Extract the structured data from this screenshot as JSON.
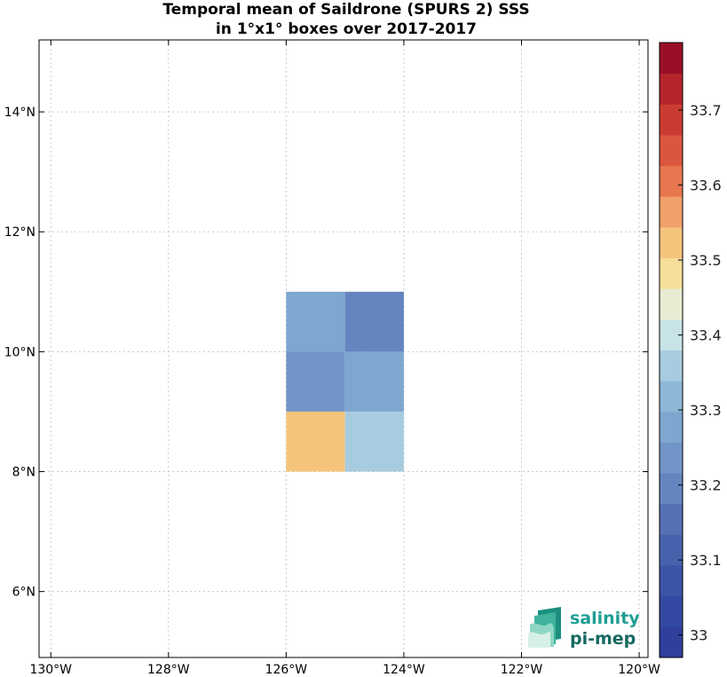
{
  "title": {
    "line1": "Temporal mean of Saildrone (SPURS 2) SSS",
    "line2": "in 1°x1° boxes over 2017-2017"
  },
  "logo": {
    "word1": "salinity",
    "word2": "pi-mep"
  },
  "chart_data": {
    "type": "heatmap",
    "title": "Temporal mean of Saildrone (SPURS 2) SSS in 1°x1° boxes over 2017-2017",
    "xlabel": "",
    "ylabel": "",
    "xlim": [
      -130.2,
      -119.85
    ],
    "ylim": [
      4.9,
      15.2
    ],
    "grid": true,
    "x_ticks": [
      {
        "value": -130,
        "label": "130°W"
      },
      {
        "value": -128,
        "label": "128°W"
      },
      {
        "value": -126,
        "label": "126°W"
      },
      {
        "value": -124,
        "label": "124°W"
      },
      {
        "value": -122,
        "label": "122°W"
      },
      {
        "value": -120,
        "label": "120°W"
      }
    ],
    "y_ticks": [
      {
        "value": 6,
        "label": "6°N"
      },
      {
        "value": 8,
        "label": "8°N"
      },
      {
        "value": 10,
        "label": "10°N"
      },
      {
        "value": 12,
        "label": "12°N"
      },
      {
        "value": 14,
        "label": "14°N"
      }
    ],
    "cells": [
      {
        "lon": [
          -126,
          -125
        ],
        "lat": [
          10,
          11
        ],
        "value": 33.28
      },
      {
        "lon": [
          -125,
          -124
        ],
        "lat": [
          10,
          11
        ],
        "value": 33.18
      },
      {
        "lon": [
          -126,
          -125
        ],
        "lat": [
          9,
          10
        ],
        "value": 33.24
      },
      {
        "lon": [
          -125,
          -124
        ],
        "lat": [
          9,
          10
        ],
        "value": 33.27
      },
      {
        "lon": [
          -126,
          -125
        ],
        "lat": [
          8,
          9
        ],
        "value": 33.53
      },
      {
        "lon": [
          -125,
          -124
        ],
        "lat": [
          8,
          9
        ],
        "value": 33.36
      }
    ],
    "colorbar": {
      "min": 32.97,
      "max": 33.79,
      "ticks": [
        33,
        33.1,
        33.2,
        33.3,
        33.4,
        33.5,
        33.6,
        33.7
      ],
      "colors": [
        "#303f9c",
        "#3449a1",
        "#3b54a6",
        "#4762ac",
        "#5571b4",
        "#6485bf",
        "#7195c7",
        "#7ea6cf",
        "#8eb7d7",
        "#a8ccdf",
        "#c8e3e5",
        "#e8ecd2",
        "#f7de9b",
        "#f5c47c",
        "#f0a06a",
        "#e7774f",
        "#dc563f",
        "#cb3b33",
        "#b6252c",
        "#9a0f28"
      ]
    }
  }
}
